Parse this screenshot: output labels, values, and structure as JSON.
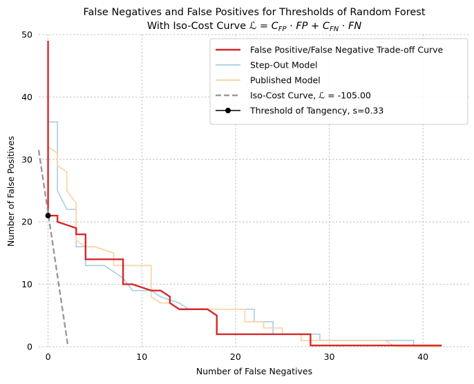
{
  "chart_data": {
    "type": "line",
    "title": "False Negatives and False Positives for Thresholds of Random Forest",
    "subtitle": "With Iso-Cost Curve ℒ = C_FP · FP + C_FN · FN",
    "xlabel": "Number of False Negatives",
    "ylabel": "Number of False Positives",
    "xlim": [
      -1,
      45
    ],
    "ylim": [
      0,
      50
    ],
    "xticks": [
      0,
      10,
      20,
      30,
      40
    ],
    "yticks": [
      0,
      10,
      20,
      30,
      40,
      50
    ],
    "grid": true,
    "legend_position": "top-right",
    "series": [
      {
        "name": "Step-Out Model",
        "color": "#a6cde3",
        "style": "step",
        "points": [
          [
            0,
            46
          ],
          [
            0,
            36
          ],
          [
            1,
            36
          ],
          [
            1,
            25
          ],
          [
            2,
            22
          ],
          [
            3,
            22
          ],
          [
            3,
            16
          ],
          [
            4,
            16
          ],
          [
            4,
            13
          ],
          [
            6,
            13
          ],
          [
            7,
            12
          ],
          [
            8,
            11
          ],
          [
            9,
            9
          ],
          [
            11,
            9
          ],
          [
            12,
            8
          ],
          [
            14,
            7
          ],
          [
            15,
            6
          ],
          [
            22,
            6
          ],
          [
            22,
            4
          ],
          [
            24,
            4
          ],
          [
            24,
            2
          ],
          [
            29,
            2
          ],
          [
            29,
            1
          ],
          [
            39,
            1
          ],
          [
            39,
            0
          ],
          [
            42,
            0
          ]
        ]
      },
      {
        "name": "Published Model",
        "color": "#fdcf9e",
        "style": "step",
        "points": [
          [
            0,
            32
          ],
          [
            1,
            31
          ],
          [
            1,
            29
          ],
          [
            2,
            28
          ],
          [
            2,
            25
          ],
          [
            3,
            23
          ],
          [
            3,
            17
          ],
          [
            4,
            16
          ],
          [
            5,
            16
          ],
          [
            7,
            15
          ],
          [
            7,
            13
          ],
          [
            11,
            13
          ],
          [
            11,
            8
          ],
          [
            12,
            7
          ],
          [
            13,
            7
          ],
          [
            14,
            6
          ],
          [
            21,
            6
          ],
          [
            21,
            4
          ],
          [
            23,
            4
          ],
          [
            23,
            3
          ],
          [
            25,
            3
          ],
          [
            25,
            2
          ],
          [
            27,
            2
          ],
          [
            27,
            1
          ],
          [
            36,
            1
          ],
          [
            37,
            0
          ],
          [
            42,
            0
          ]
        ]
      },
      {
        "name": "False Positive/False Negative Trade-off Curve",
        "color": "#d62728",
        "style": "step",
        "points": [
          [
            0,
            49
          ],
          [
            0,
            21
          ],
          [
            1,
            21
          ],
          [
            1,
            20
          ],
          [
            2,
            19.5
          ],
          [
            3,
            19
          ],
          [
            3,
            18
          ],
          [
            4,
            18
          ],
          [
            4,
            14
          ],
          [
            8,
            14
          ],
          [
            8,
            10
          ],
          [
            9,
            10
          ],
          [
            11,
            9
          ],
          [
            12,
            9
          ],
          [
            13,
            8
          ],
          [
            13,
            7
          ],
          [
            14,
            6
          ],
          [
            17,
            6
          ],
          [
            18,
            5
          ],
          [
            18,
            2
          ],
          [
            28,
            2
          ],
          [
            28,
            0.2
          ],
          [
            42,
            0.2
          ]
        ]
      },
      {
        "name": "Iso-Cost Curve, ℒ = -105.00",
        "color": "#999999",
        "style": "dashed",
        "points": [
          [
            -1,
            31.5
          ],
          [
            2.13,
            0
          ]
        ]
      }
    ],
    "marker": {
      "name": "Threshold of Tangency, s=0.33",
      "x": 0,
      "y": 21,
      "color": "#000000"
    }
  }
}
